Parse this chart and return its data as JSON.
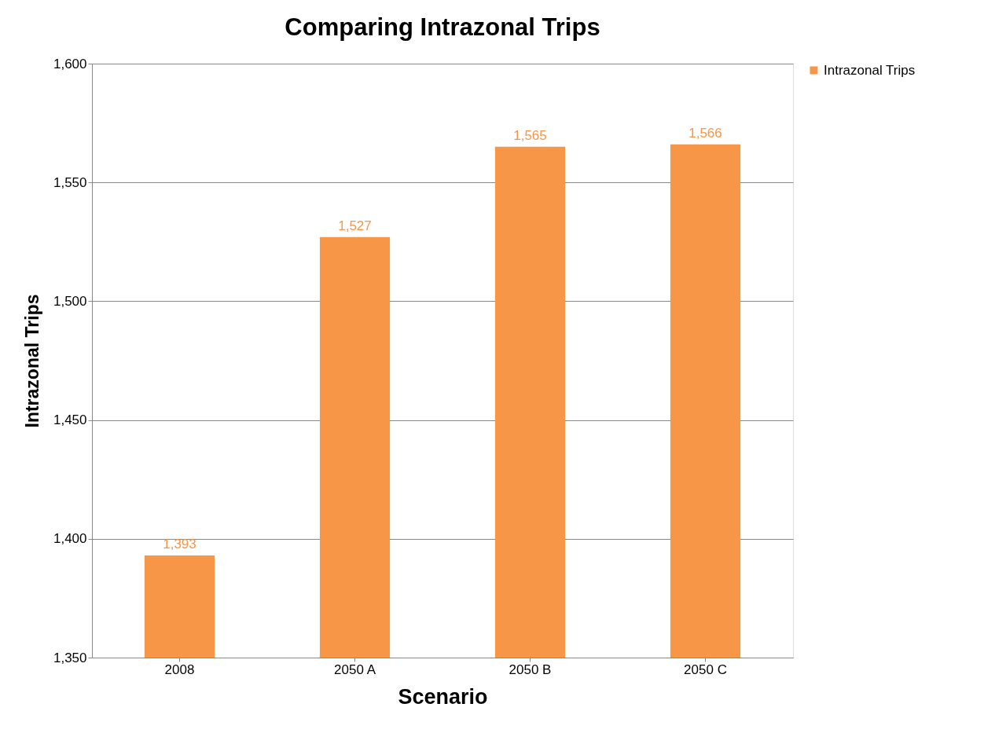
{
  "chart_data": {
    "type": "bar",
    "title": "Comparing Intrazonal Trips",
    "xlabel": "Scenario",
    "ylabel": "Intrazonal Trips",
    "categories": [
      "2008",
      "2050 A",
      "2050 B",
      "2050 C"
    ],
    "series": [
      {
        "name": "Intrazonal Trips",
        "color": "#f79646",
        "values": [
          1393,
          1527,
          1565,
          1566
        ],
        "value_labels": [
          "1,393",
          "1,527",
          "1,565",
          "1,566"
        ]
      }
    ],
    "ylim": [
      1350,
      1600
    ],
    "yticks": [
      {
        "value": 1350,
        "label": "1,350"
      },
      {
        "value": 1400,
        "label": "1,400"
      },
      {
        "value": 1450,
        "label": "1,450"
      },
      {
        "value": 1500,
        "label": "1,500"
      },
      {
        "value": 1550,
        "label": "1,550"
      },
      {
        "value": 1600,
        "label": "1,600"
      }
    ],
    "grid": "y",
    "legend": "right"
  }
}
